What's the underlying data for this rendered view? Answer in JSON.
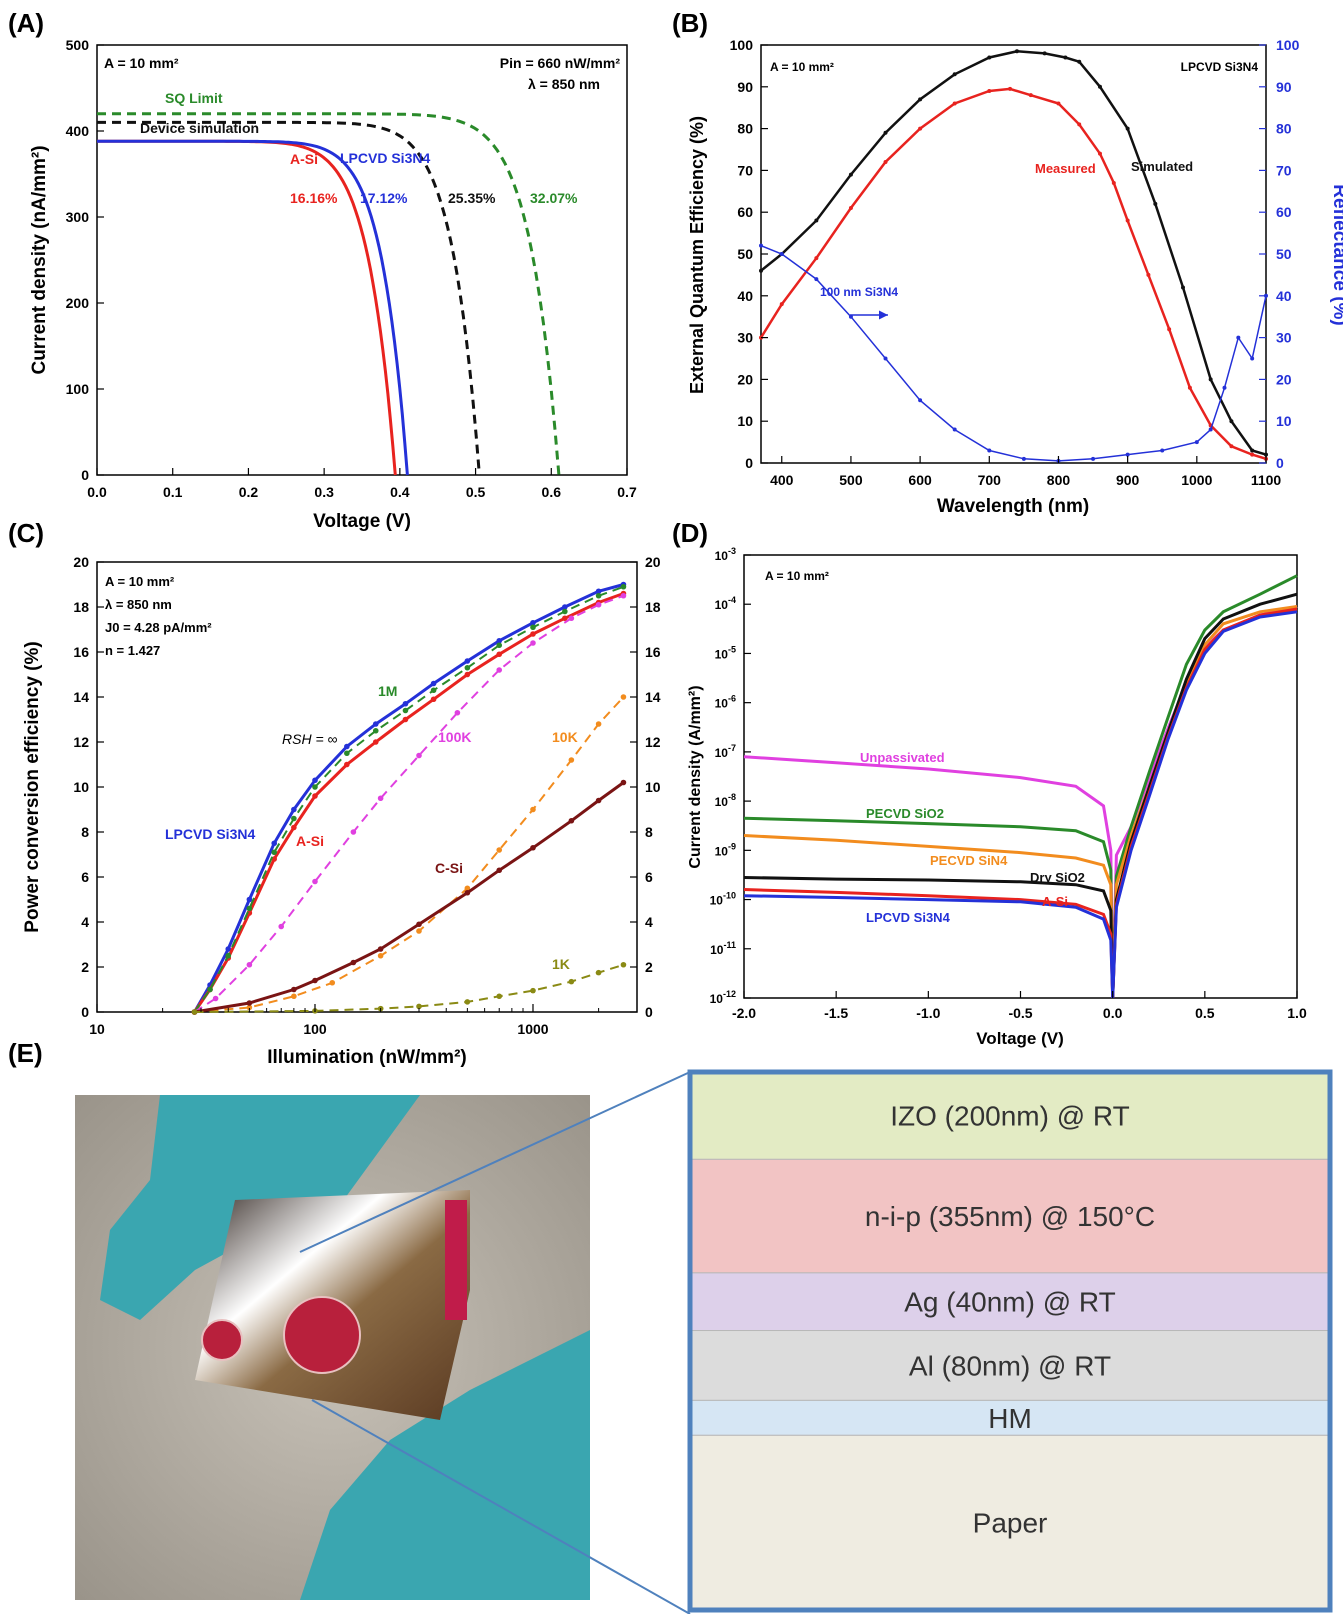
{
  "panels": {
    "A": "(A)",
    "B": "(B)",
    "C": "(C)",
    "D": "(D)",
    "E": "(E)"
  },
  "chart_data": [
    {
      "panel": "A",
      "type": "line",
      "xlabel": "Voltage (V)",
      "ylabel": "Current density (nA/mm²)",
      "xlim": [
        0,
        0.7
      ],
      "ylim": [
        0,
        500
      ],
      "xticks": [
        "0.0",
        "0.1",
        "0.2",
        "0.3",
        "0.4",
        "0.5",
        "0.6",
        "0.7"
      ],
      "yticks": [
        "0",
        "100",
        "200",
        "300",
        "400",
        "500"
      ],
      "annotations": [
        "A = 10 mm²",
        "Pin = 660 nW/mm²",
        "λ = 850 nm",
        "16.16%",
        "17.12%",
        "25.35%",
        "32.07%"
      ],
      "series": [
        {
          "name": "A-Si",
          "color": "#e8231f",
          "style": "solid",
          "jsc": 388,
          "voc": 0.394,
          "n": 11
        },
        {
          "name": "LPCVD Si3N4",
          "color": "#2431d8",
          "style": "solid",
          "jsc": 388,
          "voc": 0.41,
          "n": 12
        },
        {
          "name": "Device simulation",
          "color": "#111111",
          "style": "dashed",
          "jsc": 410,
          "voc": 0.505,
          "n": 14
        },
        {
          "name": "SQ Limit",
          "color": "#2a8a2a",
          "style": "dashed",
          "jsc": 420,
          "voc": 0.61,
          "n": 16
        }
      ]
    },
    {
      "panel": "B",
      "type": "line",
      "xlabel": "Wavelength (nm)",
      "ylabel": "External Quantum Efficiency (%)",
      "y2label": "Reflectance (%)",
      "xlim": [
        370,
        1100
      ],
      "ylim": [
        0,
        100
      ],
      "xticks": [
        "400",
        "500",
        "600",
        "700",
        "800",
        "900",
        "1000",
        "1100"
      ],
      "yticks": [
        "0",
        "10",
        "20",
        "30",
        "40",
        "50",
        "60",
        "70",
        "80",
        "90",
        "100"
      ],
      "annotations": [
        "A = 10 mm²",
        "LPCVD Si3N4",
        "100 nm Si3N4"
      ],
      "series": [
        {
          "name": "Simulated",
          "color": "#111111",
          "x": [
            370,
            400,
            450,
            500,
            550,
            600,
            650,
            700,
            740,
            780,
            810,
            830,
            860,
            900,
            940,
            980,
            1020,
            1050,
            1080,
            1100
          ],
          "y": [
            46,
            50,
            58,
            69,
            79,
            87,
            93,
            97,
            98.5,
            98,
            97,
            96,
            90,
            80,
            62,
            42,
            20,
            10,
            3,
            2
          ]
        },
        {
          "name": "Measured",
          "color": "#e8231f",
          "x": [
            370,
            400,
            450,
            500,
            550,
            600,
            650,
            700,
            730,
            760,
            800,
            830,
            860,
            880,
            900,
            930,
            960,
            990,
            1020,
            1050,
            1080,
            1100
          ],
          "y": [
            30,
            38,
            49,
            61,
            72,
            80,
            86,
            89,
            89.5,
            88,
            86,
            81,
            74,
            67,
            58,
            45,
            32,
            18,
            9,
            4,
            2,
            1
          ]
        },
        {
          "name": "Reflectance",
          "color": "#2431d8",
          "x": [
            370,
            400,
            450,
            500,
            550,
            600,
            650,
            700,
            750,
            800,
            850,
            900,
            950,
            1000,
            1020,
            1040,
            1060,
            1080,
            1100
          ],
          "y": [
            52,
            50,
            44,
            35,
            25,
            15,
            8,
            3,
            1,
            0.5,
            1,
            2,
            3,
            5,
            8,
            18,
            30,
            25,
            40
          ]
        }
      ]
    },
    {
      "panel": "C",
      "type": "line",
      "xlabel": "Illumination (nW/mm²)",
      "ylabel": "Power conversion efficiency (%)",
      "xscale": "log",
      "xlim": [
        10,
        3000
      ],
      "ylim": [
        0,
        20
      ],
      "xticks": [
        "10",
        "100",
        "1000"
      ],
      "yticks": [
        "0",
        "2",
        "4",
        "6",
        "8",
        "10",
        "12",
        "14",
        "16",
        "18",
        "20"
      ],
      "annotations": [
        "A = 10 mm²",
        "λ = 850 nm",
        "J0 = 4.28 pA/mm²",
        "n = 1.427",
        "RSH = ∞"
      ],
      "series": [
        {
          "name": "LPCVD Si3N4",
          "color": "#2431d8",
          "x": [
            28,
            33,
            40,
            50,
            65,
            80,
            100,
            140,
            190,
            260,
            350,
            500,
            700,
            1000,
            1400,
            2000,
            2600
          ],
          "y": [
            0,
            1.2,
            2.8,
            5.0,
            7.5,
            9.0,
            10.3,
            11.8,
            12.8,
            13.7,
            14.6,
            15.6,
            16.5,
            17.3,
            18.0,
            18.7,
            19.0
          ]
        },
        {
          "name": "A-Si",
          "color": "#e8231f",
          "x": [
            28,
            33,
            40,
            50,
            65,
            80,
            100,
            140,
            190,
            260,
            350,
            500,
            700,
            1000,
            1400,
            2000,
            2600
          ],
          "y": [
            0,
            1.0,
            2.4,
            4.4,
            6.8,
            8.2,
            9.6,
            11.0,
            12.0,
            13.0,
            13.9,
            15.0,
            15.9,
            16.8,
            17.5,
            18.2,
            18.6
          ]
        },
        {
          "name": "1M",
          "color": "#2a8a2a",
          "x": [
            28,
            33,
            40,
            50,
            65,
            80,
            100,
            140,
            190,
            260,
            350,
            500,
            700,
            1000,
            1400,
            2000,
            2600
          ],
          "y": [
            0,
            1.0,
            2.5,
            4.6,
            7.1,
            8.6,
            10.0,
            11.5,
            12.5,
            13.4,
            14.3,
            15.3,
            16.3,
            17.1,
            17.8,
            18.5,
            18.9
          ]
        },
        {
          "name": "100K",
          "color": "#e040e0",
          "x": [
            28,
            35,
            50,
            70,
            100,
            150,
            200,
            300,
            450,
            700,
            1000,
            1500,
            2000,
            2600
          ],
          "y": [
            0,
            0.6,
            2.1,
            3.8,
            5.8,
            8.0,
            9.5,
            11.4,
            13.3,
            15.2,
            16.4,
            17.5,
            18.1,
            18.5
          ]
        },
        {
          "name": "10K",
          "color": "#f28c1e",
          "x": [
            28,
            50,
            80,
            120,
            200,
            300,
            500,
            700,
            1000,
            1500,
            2000,
            2600
          ],
          "y": [
            0,
            0.2,
            0.7,
            1.3,
            2.5,
            3.6,
            5.5,
            7.2,
            9.0,
            11.2,
            12.8,
            14.0
          ]
        },
        {
          "name": "C-Si",
          "color": "#7a1414",
          "x": [
            28,
            50,
            80,
            100,
            150,
            200,
            300,
            500,
            700,
            1000,
            1500,
            2000,
            2600
          ],
          "y": [
            0,
            0.4,
            1.0,
            1.4,
            2.2,
            2.8,
            3.9,
            5.3,
            6.3,
            7.3,
            8.5,
            9.4,
            10.2
          ]
        },
        {
          "name": "1K",
          "color": "#8a8a14",
          "x": [
            28,
            100,
            200,
            300,
            500,
            700,
            1000,
            1500,
            2000,
            2600
          ],
          "y": [
            0,
            0.05,
            0.15,
            0.25,
            0.45,
            0.7,
            0.95,
            1.35,
            1.75,
            2.1
          ]
        }
      ]
    },
    {
      "panel": "D",
      "type": "line",
      "xlabel": "Voltage (V)",
      "ylabel": "Current density (A/mm²)",
      "yscale": "log",
      "xlim": [
        -2.0,
        1.0
      ],
      "ylim": [
        1e-12,
        0.001
      ],
      "xticks": [
        "-2.0",
        "-1.5",
        "-1.0",
        "-0.5",
        "0.0",
        "0.5",
        "1.0"
      ],
      "yticks": [
        "10-12",
        "10-11",
        "10-10",
        "10-9",
        "10-8",
        "10-7",
        "10-6",
        "10-5",
        "10-4",
        "10-3"
      ],
      "annotations": [
        "A = 10 mm²"
      ],
      "series": [
        {
          "name": "Unpassivated",
          "color": "#e040e0",
          "x": [
            -2.0,
            -1.5,
            -1.0,
            -0.5,
            -0.2,
            -0.05,
            -0.01,
            0.0,
            0.02,
            0.1,
            0.2,
            0.3,
            0.4,
            0.5,
            0.6,
            0.8,
            1.0
          ],
          "y": [
            8e-08,
            6e-08,
            4.5e-08,
            3e-08,
            2e-08,
            8e-09,
            1e-09,
            1e-12,
            8e-10,
            3e-09,
            3e-08,
            3e-07,
            2.5e-06,
            1.3e-05,
            3e-05,
            6e-05,
            9e-05
          ]
        },
        {
          "name": "PECVD SiO2",
          "color": "#2a8a2a",
          "x": [
            -2.0,
            -1.5,
            -1.0,
            -0.5,
            -0.2,
            -0.05,
            -0.01,
            0.0,
            0.02,
            0.1,
            0.2,
            0.3,
            0.4,
            0.5,
            0.6,
            0.8,
            1.0
          ],
          "y": [
            4.5e-09,
            4e-09,
            3.5e-09,
            3e-09,
            2.5e-09,
            1.5e-09,
            4e-10,
            1e-12,
            3e-10,
            3e-09,
            4e-08,
            5e-07,
            6e-06,
            3e-05,
            7e-05,
            0.00016,
            0.00038
          ]
        },
        {
          "name": "PECVD SiN4",
          "color": "#f28c1e",
          "x": [
            -2.0,
            -1.5,
            -1.0,
            -0.5,
            -0.2,
            -0.05,
            -0.01,
            0.0,
            0.02,
            0.1,
            0.2,
            0.3,
            0.4,
            0.5,
            0.6,
            0.8,
            1.0
          ],
          "y": [
            2e-09,
            1.6e-09,
            1.2e-09,
            9e-10,
            7e-10,
            5e-10,
            2e-10,
            1e-12,
            2e-10,
            2e-09,
            2e-08,
            2.5e-07,
            2.5e-06,
            1.5e-05,
            4e-05,
            7e-05,
            9e-05
          ]
        },
        {
          "name": "Dry SiO2",
          "color": "#111111",
          "x": [
            -2.0,
            -1.5,
            -1.0,
            -0.5,
            -0.2,
            -0.05,
            -0.01,
            0.0,
            0.02,
            0.1,
            0.2,
            0.3,
            0.4,
            0.5,
            0.6,
            0.8,
            1.0
          ],
          "y": [
            2.8e-10,
            2.6e-10,
            2.5e-10,
            2.3e-10,
            2e-10,
            1.5e-10,
            6e-11,
            1e-12,
            1e-10,
            1.5e-09,
            2e-08,
            2.5e-07,
            3e-06,
            2e-05,
            5e-05,
            0.0001,
            0.00016
          ]
        },
        {
          "name": "A-Si",
          "color": "#e8231f",
          "x": [
            -2.0,
            -1.5,
            -1.0,
            -0.5,
            -0.2,
            -0.05,
            -0.01,
            0.0,
            0.02,
            0.1,
            0.2,
            0.3,
            0.4,
            0.5,
            0.6,
            0.8,
            1.0
          ],
          "y": [
            1.6e-10,
            1.4e-10,
            1.2e-10,
            1e-10,
            8e-11,
            5e-11,
            2e-11,
            1e-12,
            8e-11,
            1.2e-09,
            1.5e-08,
            2e-07,
            2e-06,
            1.2e-05,
            3e-05,
            6e-05,
            8e-05
          ]
        },
        {
          "name": "LPCVD Si3N4",
          "color": "#2431d8",
          "x": [
            -2.0,
            -1.5,
            -1.0,
            -0.5,
            -0.2,
            -0.05,
            -0.01,
            0.0,
            0.02,
            0.1,
            0.2,
            0.3,
            0.4,
            0.5,
            0.6,
            0.8,
            1.0
          ],
          "y": [
            1.2e-10,
            1.1e-10,
            1e-10,
            9e-11,
            7e-11,
            4e-11,
            1.5e-11,
            1e-12,
            7e-11,
            1e-09,
            1.3e-08,
            1.8e-07,
            1.8e-06,
            1e-05,
            2.8e-05,
            5.5e-05,
            7e-05
          ]
        }
      ]
    }
  ],
  "stack": {
    "layers": [
      {
        "label": "IZO (200nm) @ RT",
        "color": "#e3ebc4"
      },
      {
        "label": "n-i-p (355nm) @ 150°C",
        "color": "#f2c4c4"
      },
      {
        "label": "Ag (40nm) @ RT",
        "color": "#ddd0ea"
      },
      {
        "label": "Al (80nm) @ RT",
        "color": "#dcdcdc"
      },
      {
        "label": "HM",
        "color": "#d6e6f4"
      },
      {
        "label": "Paper",
        "color": "#efece1"
      }
    ],
    "border_color": "#4f81bd"
  }
}
